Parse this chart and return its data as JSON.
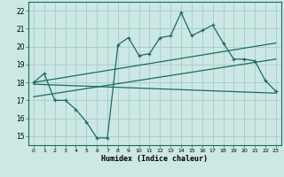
{
  "xlabel": "Humidex (Indice chaleur)",
  "bg_color": "#cce8e4",
  "grid_color": "#aacfcb",
  "line_color": "#1a6b60",
  "xlim": [
    -0.5,
    23.5
  ],
  "ylim": [
    14.5,
    22.5
  ],
  "xticks": [
    0,
    1,
    2,
    3,
    4,
    5,
    6,
    7,
    8,
    9,
    10,
    11,
    12,
    13,
    14,
    15,
    16,
    17,
    18,
    19,
    20,
    21,
    22,
    23
  ],
  "yticks": [
    15,
    16,
    17,
    18,
    19,
    20,
    21,
    22
  ],
  "line1_x": [
    0,
    1,
    2,
    3,
    4,
    5,
    6,
    7,
    8,
    9,
    10,
    11,
    12,
    13,
    14,
    15,
    16,
    17,
    18,
    19,
    20,
    21,
    22,
    23
  ],
  "line1_y": [
    18.0,
    18.5,
    17.0,
    17.0,
    16.5,
    15.8,
    14.9,
    14.9,
    20.1,
    20.5,
    19.5,
    19.6,
    20.5,
    20.6,
    21.9,
    20.6,
    20.9,
    21.2,
    20.2,
    19.3,
    19.3,
    19.2,
    18.1,
    17.5
  ],
  "line2_x": [
    0,
    23
  ],
  "line2_y": [
    17.9,
    17.4
  ],
  "line3_x": [
    0,
    23
  ],
  "line3_y": [
    18.0,
    20.2
  ],
  "line4_x": [
    0,
    23
  ],
  "line4_y": [
    17.2,
    19.3
  ]
}
